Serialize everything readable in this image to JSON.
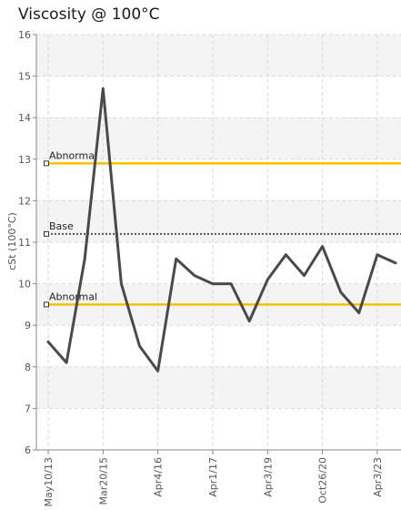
{
  "chart_data": {
    "type": "line",
    "title": "Viscosity @ 100°C",
    "ylabel": "cSt (100°C)",
    "xlabel": "",
    "ylim": [
      6,
      16
    ],
    "yticks": [
      6,
      7,
      8,
      9,
      10,
      11,
      12,
      13,
      14,
      15,
      16
    ],
    "xtick_labels": [
      "May10/13",
      "Mar20/15",
      "Apr4/16",
      "Apr1/17",
      "Apr3/19",
      "Oct26/20",
      "Apr3/23"
    ],
    "grid": true,
    "series": [
      {
        "values": [
          8.6,
          8.1,
          10.6,
          14.7,
          10.0,
          8.5,
          7.9,
          10.6,
          10.2,
          10.0,
          10.0,
          9.1,
          10.1,
          10.7,
          10.2,
          10.9,
          9.8,
          9.3,
          10.7,
          10.5
        ],
        "color": "#4a4a4a"
      }
    ],
    "reference_lines": [
      {
        "label": "Abnormal",
        "value": 12.9,
        "color": "#f2c200",
        "style": "solid"
      },
      {
        "label": "Base",
        "value": 11.2,
        "color": "#555555",
        "style": "dotted"
      },
      {
        "label": "Abnormal",
        "value": 9.5,
        "color": "#f2c200",
        "style": "solid"
      }
    ]
  }
}
